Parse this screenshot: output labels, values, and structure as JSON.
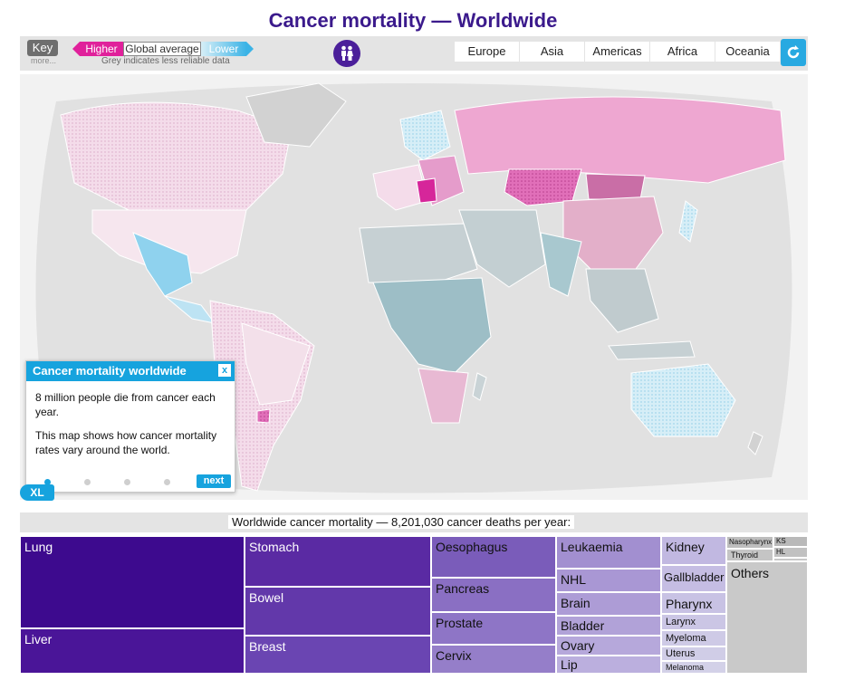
{
  "title": "Cancer mortality — Worldwide",
  "key": {
    "label": "Key",
    "more": "more..."
  },
  "legend": {
    "higher": "Higher",
    "average": "Global average",
    "lower": "Lower",
    "note": "Grey indicates less reliable data"
  },
  "regions": [
    "Europe",
    "Asia",
    "Americas",
    "Africa",
    "Oceania"
  ],
  "icons": {
    "people": "people-icon",
    "reset": "refresh-icon"
  },
  "info": {
    "title": "Cancer mortality worldwide",
    "close": "x",
    "p1": "8 million people die from cancer each year.",
    "p2": "This map shows how cancer mortality rates vary around the world.",
    "next": "next",
    "page": 1,
    "pages": 4
  },
  "zoom_badge": "XL",
  "treemap": {
    "caption": "Worldwide cancer mortality — 8,201,030 cancer deaths per year:",
    "cells": [
      {
        "label": "Lung"
      },
      {
        "label": "Liver"
      },
      {
        "label": "Stomach"
      },
      {
        "label": "Bowel"
      },
      {
        "label": "Breast"
      },
      {
        "label": "Oesophagus"
      },
      {
        "label": "Pancreas"
      },
      {
        "label": "Prostate"
      },
      {
        "label": "Cervix"
      },
      {
        "label": "Leukaemia"
      },
      {
        "label": "NHL"
      },
      {
        "label": "Brain"
      },
      {
        "label": "Bladder"
      },
      {
        "label": "Ovary"
      },
      {
        "label": "Lip"
      },
      {
        "label": "Kidney"
      },
      {
        "label": "Gallbladder"
      },
      {
        "label": "Pharynx"
      },
      {
        "label": "Larynx"
      },
      {
        "label": "Myeloma"
      },
      {
        "label": "Uterus"
      },
      {
        "label": "Melanoma"
      },
      {
        "label": "Nasopharynx"
      },
      {
        "label": "Thyroid"
      },
      {
        "label": "KS"
      },
      {
        "label": "HL"
      },
      {
        "label": "Others"
      }
    ]
  },
  "colors": {
    "title": "#3b1a8c",
    "higher": "#e0219b",
    "lower": "#3bb3e6",
    "accent": "#16a3de",
    "grey_data": "#b9c3c6"
  }
}
